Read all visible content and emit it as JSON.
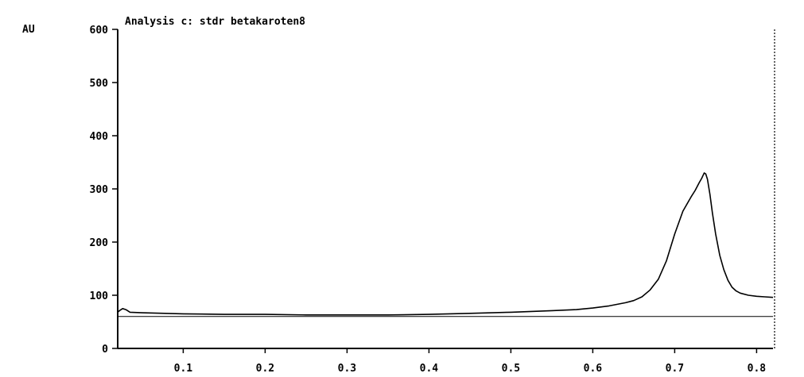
{
  "chart_data": {
    "type": "line",
    "title": "Analysis c: stdr betakaroten8",
    "ylabel": "AU",
    "xlabel": "",
    "xlim": [
      0.02,
      0.82
    ],
    "ylim": [
      0,
      600
    ],
    "x_ticks": [
      "0.1",
      "0.2",
      "0.3",
      "0.4",
      "0.5",
      "0.6",
      "0.7",
      "0.8"
    ],
    "x_tick_values": [
      0.1,
      0.2,
      0.3,
      0.4,
      0.5,
      0.6,
      0.7,
      0.8
    ],
    "y_ticks": [
      "0",
      "100",
      "200",
      "300",
      "400",
      "500",
      "600"
    ],
    "y_tick_values": [
      0,
      100,
      200,
      300,
      400,
      500,
      600
    ],
    "baseline": 60,
    "grid": false,
    "colors": {
      "line": "#000000",
      "background": "#ffffff"
    },
    "series": [
      {
        "x": [
          0.02,
          0.023,
          0.026,
          0.03,
          0.035,
          0.05,
          0.1,
          0.15,
          0.2,
          0.25,
          0.3,
          0.35,
          0.4,
          0.45,
          0.5,
          0.55,
          0.58,
          0.6,
          0.62,
          0.64,
          0.65,
          0.66,
          0.67,
          0.68,
          0.69,
          0.7,
          0.71,
          0.72,
          0.725,
          0.73,
          0.733,
          0.736,
          0.738,
          0.74,
          0.743,
          0.746,
          0.75,
          0.755,
          0.76,
          0.765,
          0.77,
          0.775,
          0.78,
          0.79,
          0.8,
          0.81,
          0.82
        ],
        "y": [
          68,
          72,
          75,
          73,
          68,
          67,
          65,
          64,
          64,
          63,
          63,
          63,
          64,
          66,
          68,
          71,
          73,
          76,
          80,
          86,
          90,
          97,
          110,
          130,
          165,
          215,
          258,
          285,
          297,
          312,
          320,
          330,
          328,
          318,
          290,
          255,
          215,
          175,
          148,
          128,
          115,
          108,
          104,
          100,
          98,
          97,
          96
        ]
      }
    ]
  }
}
